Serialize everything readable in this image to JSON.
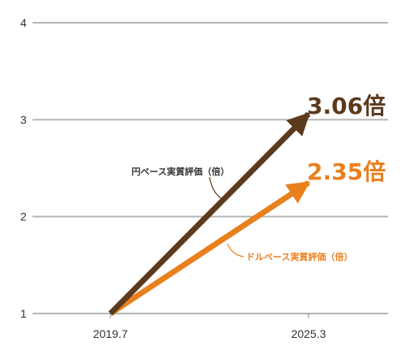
{
  "chart_data": {
    "type": "line",
    "x": [
      "2019.7",
      "2025.3"
    ],
    "ylim": [
      1,
      4
    ],
    "yticks": [
      "1",
      "2",
      "3",
      "4"
    ],
    "grid": true,
    "series": [
      {
        "name": "円ベース実質評価（倍）",
        "values": [
          1,
          3.06
        ],
        "color": "#5b3a1e",
        "end_label": "3.06倍"
      },
      {
        "name": "ドルベース実質評価（倍）",
        "values": [
          1,
          2.35
        ],
        "color": "#e8801e",
        "end_label": "2.35倍"
      }
    ]
  }
}
